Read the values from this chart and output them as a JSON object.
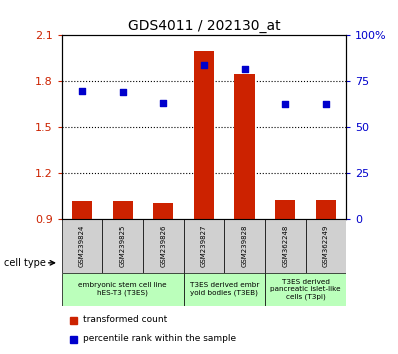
{
  "title": "GDS4011 / 202130_at",
  "categories": [
    "GSM239824",
    "GSM239825",
    "GSM239826",
    "GSM239827",
    "GSM239828",
    "GSM362248",
    "GSM362249"
  ],
  "bar_values": [
    1.02,
    1.02,
    1.01,
    2.0,
    1.85,
    1.03,
    1.03
  ],
  "scatter_values": [
    1.74,
    1.73,
    1.66,
    1.91,
    1.88,
    1.65,
    1.65
  ],
  "ylim_left": [
    0.9,
    2.1
  ],
  "yticks_left": [
    0.9,
    1.2,
    1.5,
    1.8,
    2.1
  ],
  "ytick_labels_left": [
    "0.9",
    "1.2",
    "1.5",
    "1.8",
    "2.1"
  ],
  "ylim_right": [
    0,
    100
  ],
  "yticks_right": [
    0,
    25,
    50,
    75,
    100
  ],
  "ytick_labels_right": [
    "0",
    "25",
    "50",
    "75",
    "100%"
  ],
  "bar_color": "#cc2200",
  "scatter_color": "#0000cc",
  "bar_bottom": 0.9,
  "gridline_ticks": [
    1.2,
    1.5,
    1.8
  ],
  "groups": [
    {
      "label": "embryonic stem cell line\nhES-T3 (T3ES)",
      "start": 0,
      "end": 3,
      "color": "#bbffbb"
    },
    {
      "label": "T3ES derived embr\nyoid bodies (T3EB)",
      "start": 3,
      "end": 5,
      "color": "#bbffbb"
    },
    {
      "label": "T3ES derived\npancreatic islet-like\ncells (T3pi)",
      "start": 5,
      "end": 7,
      "color": "#bbffbb"
    }
  ],
  "legend_items": [
    {
      "label": "transformed count",
      "color": "#cc2200"
    },
    {
      "label": "percentile rank within the sample",
      "color": "#0000cc"
    }
  ],
  "cell_type_label": "cell type",
  "background_color": "#ffffff",
  "plot_bg_color": "#ffffff",
  "tick_label_color_left": "#cc2200",
  "tick_label_color_right": "#0000cc",
  "gray_box_color": "#d0d0d0",
  "bar_width": 0.5
}
